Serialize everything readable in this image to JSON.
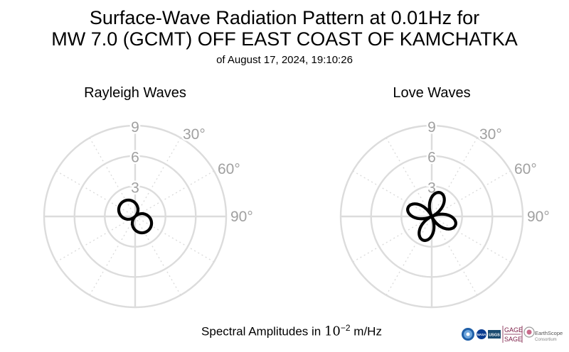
{
  "header": {
    "title_line1": "Surface-Wave Radiation Pattern at 0.01Hz for",
    "title_line2": "MW 7.0 (GCMT) OFF EAST COAST OF KAMCHATKA",
    "subtitle": "of August 17, 2024, 19:10:26"
  },
  "footer": {
    "amp_label_prefix": "Spectral Amplitudes in ",
    "amp_label_base": "10",
    "amp_label_exp": "−2",
    "amp_label_unit": " m/Hz"
  },
  "logos": {
    "gage": "GAGE",
    "sage": "SAGE",
    "earthscope": "EarthScope",
    "consortium": "Consortium",
    "nasa": "NASA",
    "usgs": "USGS"
  },
  "colors": {
    "grid": "#dcdcdc",
    "tick_text": "#a0a0a0",
    "pattern": "#000000"
  },
  "chart_data": [
    {
      "type": "polar-line",
      "title": "Rayleigh Waves",
      "radial_ticks": [
        3,
        6,
        9
      ],
      "radial_tick_labels": [
        "3",
        "6",
        "9"
      ],
      "angle_tick_labels": [
        "30°",
        "60°",
        "90°"
      ],
      "rmax": 9,
      "pattern": {
        "shape": "two-lobe",
        "peak_amplitude": 1.9,
        "peak_azimuth_deg": 135
      }
    },
    {
      "type": "polar-line",
      "title": "Love Waves",
      "radial_ticks": [
        3,
        6,
        9
      ],
      "radial_tick_labels": [
        "3",
        "6",
        "9"
      ],
      "angle_tick_labels": [
        "30°",
        "60°",
        "90°"
      ],
      "rmax": 9,
      "pattern": {
        "shape": "four-lobe",
        "peak_amplitude": 2.5,
        "peak_azimuths_deg": [
          20,
          110,
          200,
          290
        ]
      }
    }
  ]
}
